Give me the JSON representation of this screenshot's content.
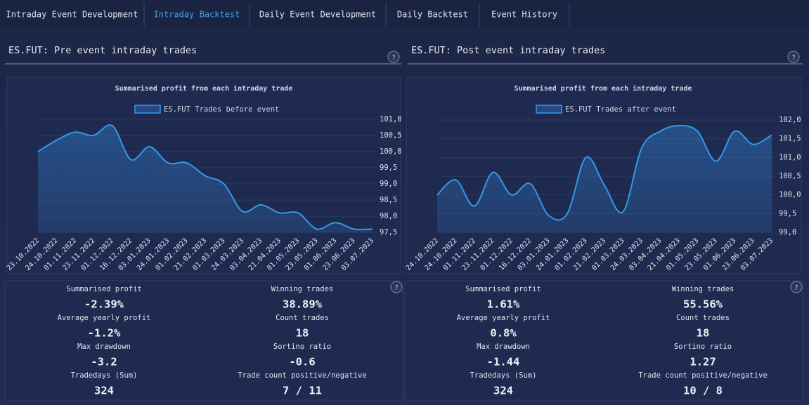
{
  "tabs": [
    "Intraday Event Development",
    "Intraday Backtest",
    "Daily Event Development",
    "Daily Backtest",
    "Event History"
  ],
  "help_label": "?",
  "panels": [
    {
      "title": "ES.FUT: Pre event intraday trades",
      "chart_data": {
        "type": "line",
        "title": "Summarised profit from each intraday trade",
        "categories": [
          "23.10.2022",
          "24.10.2022",
          "01.11.2022",
          "23.11.2022",
          "01.12.2022",
          "16.12.2022",
          "03.01.2023",
          "24.01.2023",
          "01.02.2023",
          "21.02.2023",
          "01.03.2023",
          "24.03.2023",
          "03.04.2023",
          "21.04.2023",
          "01.05.2023",
          "23.05.2023",
          "01.06.2023",
          "23.06.2023",
          "03.07.2023"
        ],
        "series": [
          {
            "name": "ES.FUT Trades before event",
            "color": "#3399e6",
            "values": [
              100.0,
              100.35,
              100.6,
              100.5,
              100.8,
              99.75,
              100.15,
              99.65,
              99.65,
              99.25,
              99.0,
              98.15,
              98.35,
              98.1,
              98.1,
              97.6,
              97.8,
              97.6,
              97.6
            ]
          }
        ],
        "ylim": [
          97.5,
          101.15
        ],
        "yticks": [
          {
            "value": 97.5,
            "label": "97,5"
          },
          {
            "value": 98,
            "label": "98,0"
          },
          {
            "value": 98.5,
            "label": "98,5"
          },
          {
            "value": 99,
            "label": "99,0"
          },
          {
            "value": 99.5,
            "label": "99,5"
          },
          {
            "value": 100,
            "label": "100,0"
          },
          {
            "value": 100.5,
            "label": "100,5"
          },
          {
            "value": 101,
            "label": "101,0"
          }
        ],
        "grid": true
      },
      "stats": [
        {
          "label": "Summarised profit",
          "value": "-2.39%"
        },
        {
          "label": "Winning trades",
          "value": "38.89%"
        },
        {
          "label": "Average yearly profit",
          "value": "-1.2%"
        },
        {
          "label": "Count trades",
          "value": "18"
        },
        {
          "label": "Max drawdown",
          "value": "-3.2"
        },
        {
          "label": "Sortino ratio",
          "value": "-0.6"
        },
        {
          "label": "Tradedays (Sum)",
          "value": "324"
        },
        {
          "label": "Trade count positive/negative",
          "value": "7 / 11"
        }
      ]
    },
    {
      "title": "ES.FUT: Post event intraday trades",
      "chart_data": {
        "type": "line",
        "title": "Summarised profit from each intraday trade",
        "categories": [
          "24.10.2022",
          "24.10.2022",
          "01.11.2022",
          "23.11.2022",
          "01.12.2022",
          "16.12.2022",
          "03.01.2023",
          "24.01.2023",
          "01.02.2023",
          "21.02.2023",
          "01.03.2023",
          "24.03.2023",
          "03.04.2023",
          "21.04.2023",
          "01.05.2023",
          "23.05.2023",
          "01.06.2023",
          "23.06.2023",
          "03.07.2023"
        ],
        "series": [
          {
            "name": "ES.FUT Trades after event",
            "color": "#3399e6",
            "values": [
              100.0,
              100.4,
              99.7,
              100.6,
              100.0,
              100.3,
              99.45,
              99.5,
              101.0,
              100.25,
              99.55,
              101.25,
              101.7,
              101.85,
              101.7,
              100.9,
              101.7,
              101.35,
              101.6
            ]
          }
        ],
        "ylim": [
          99.0,
          102.15
        ],
        "yticks": [
          {
            "value": 99,
            "label": "99,0"
          },
          {
            "value": 99.5,
            "label": "99,5"
          },
          {
            "value": 100,
            "label": "100,0"
          },
          {
            "value": 100.5,
            "label": "100,5"
          },
          {
            "value": 101,
            "label": "101,0"
          },
          {
            "value": 101.5,
            "label": "101,5"
          },
          {
            "value": 102,
            "label": "102,0"
          }
        ],
        "grid": true
      },
      "stats": [
        {
          "label": "Summarised profit",
          "value": "1.61%"
        },
        {
          "label": "Winning trades",
          "value": "55.56%"
        },
        {
          "label": "Average yearly profit",
          "value": "0.8%"
        },
        {
          "label": "Count trades",
          "value": "18"
        },
        {
          "label": "Max drawdown",
          "value": "-1.44"
        },
        {
          "label": "Sortino ratio",
          "value": "1.27"
        },
        {
          "label": "Tradedays (Sum)",
          "value": "324"
        },
        {
          "label": "Trade count positive/negative",
          "value": "10 / 8"
        }
      ]
    }
  ]
}
